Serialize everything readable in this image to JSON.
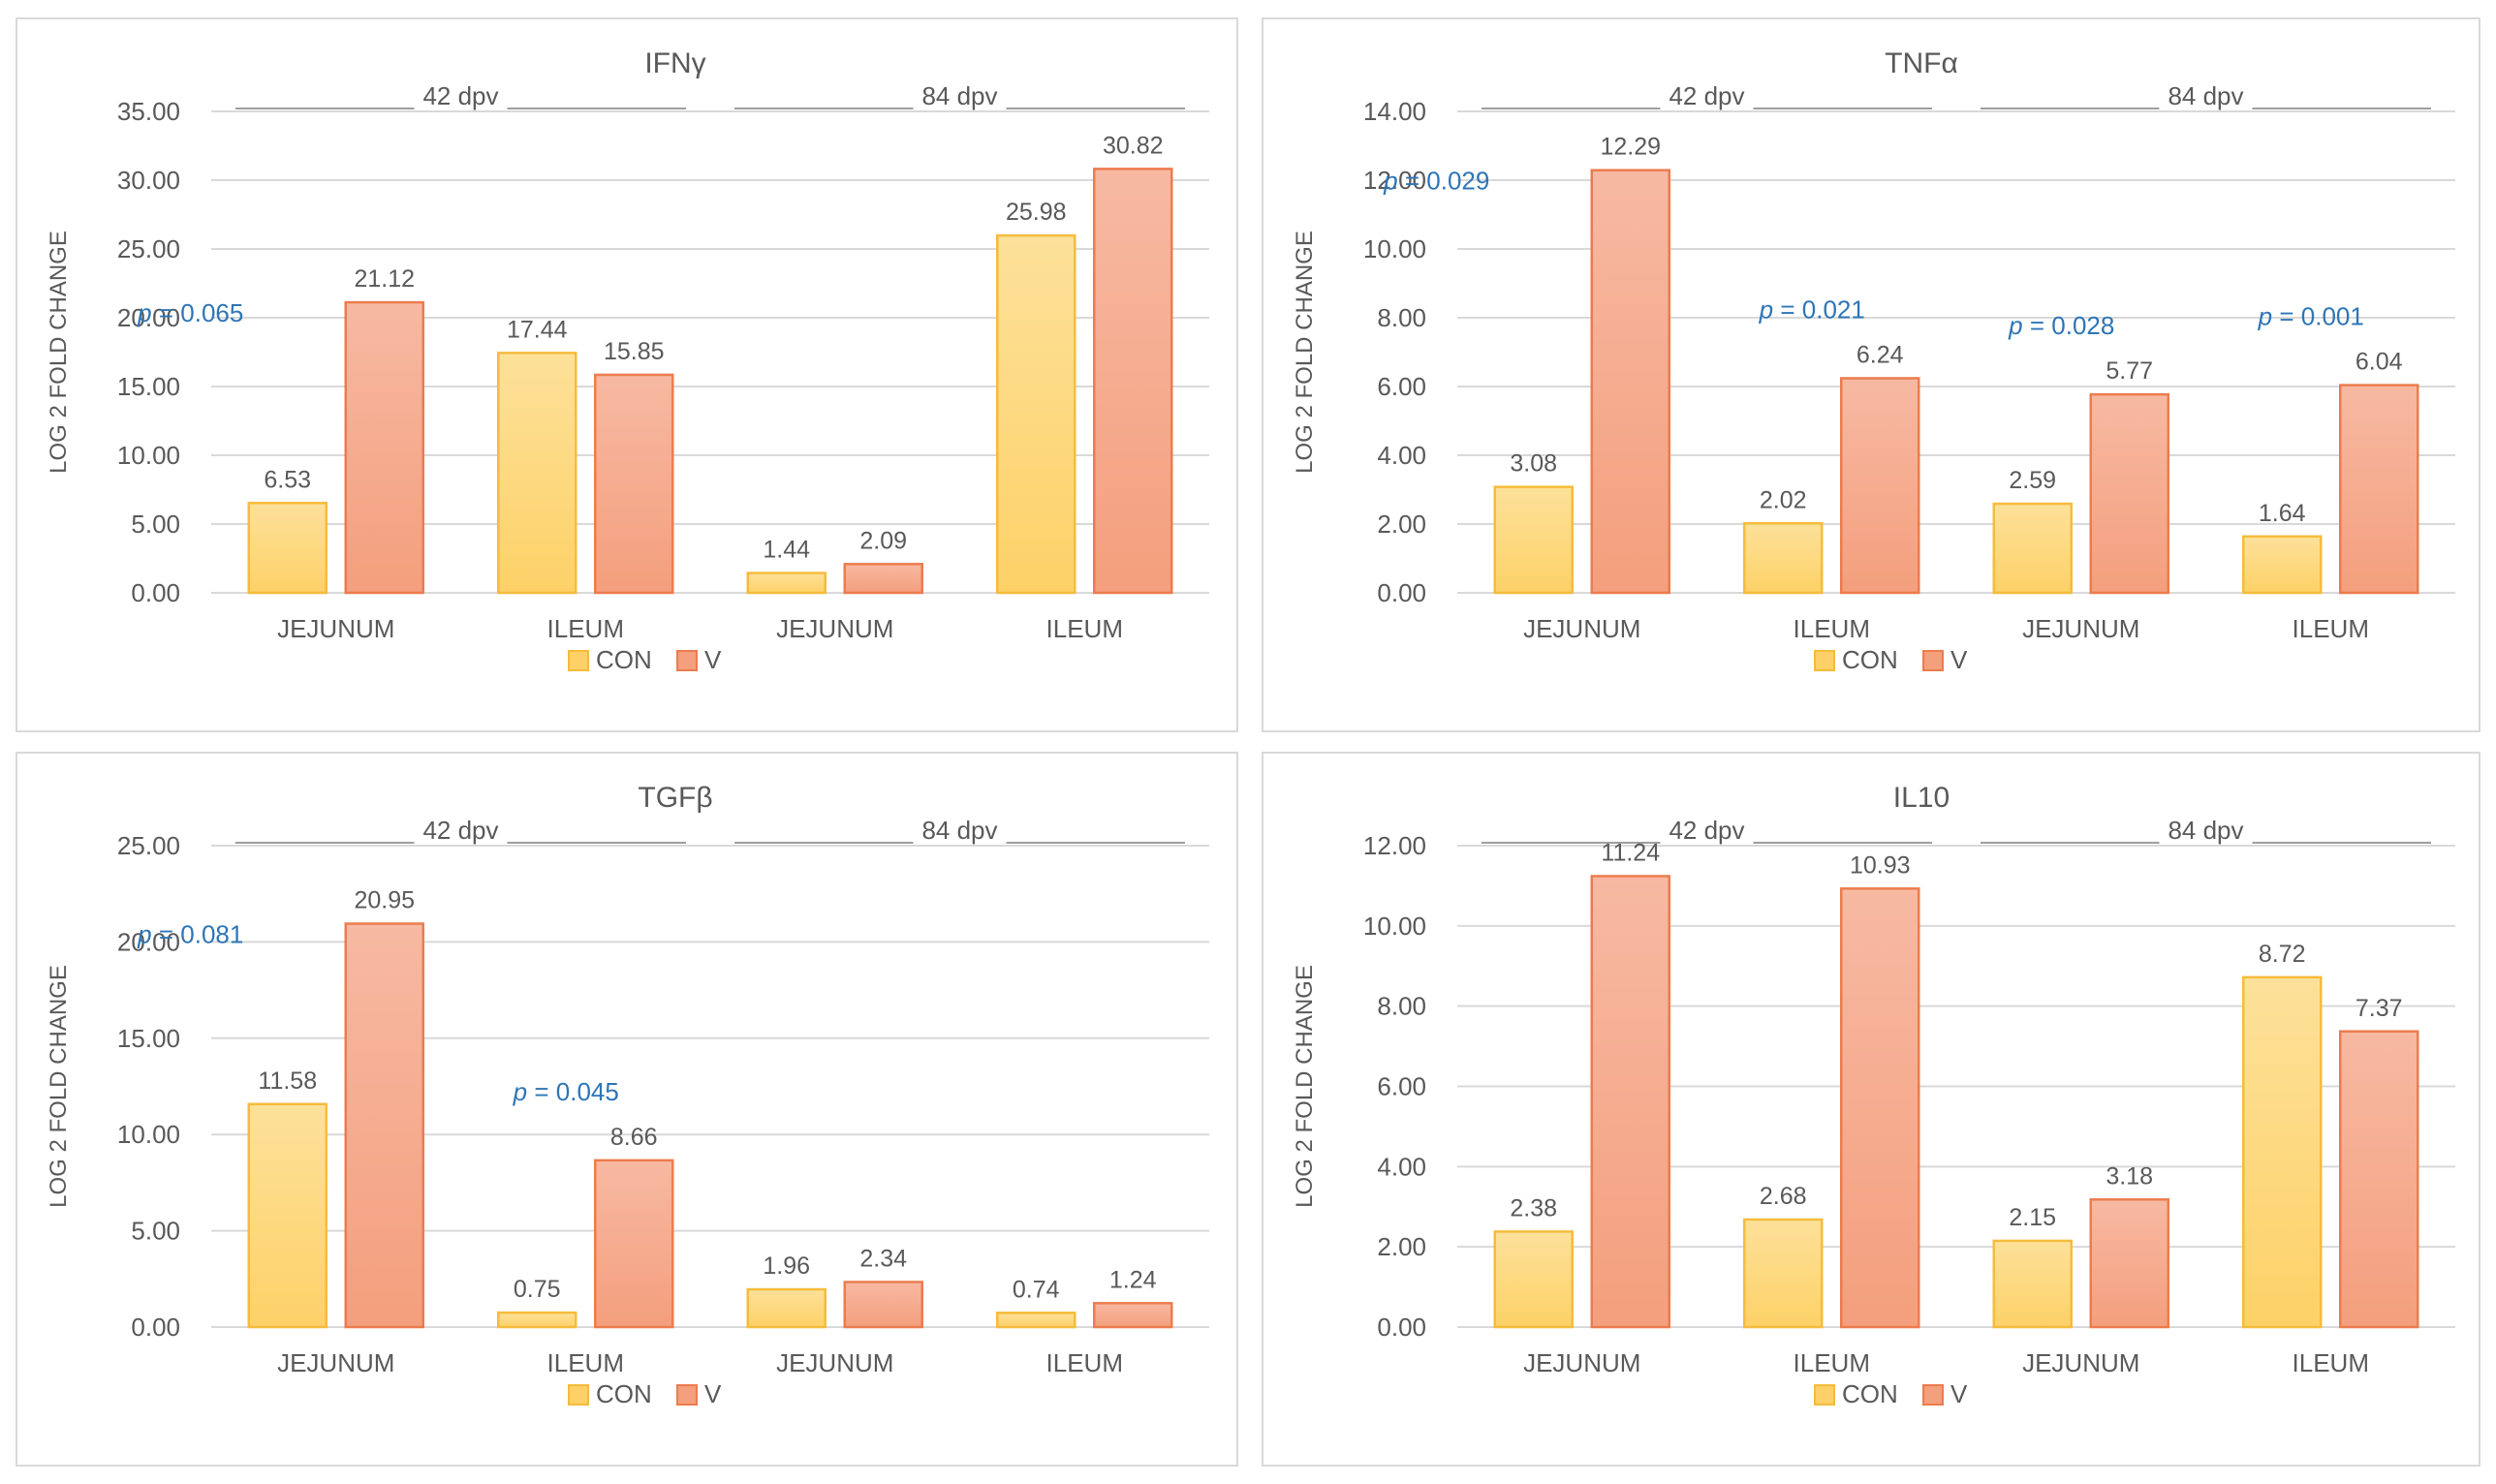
{
  "colors": {
    "con_top": "#fde19a",
    "con_bottom": "#fdd167",
    "con_stroke": "#f5bc3c",
    "v_top": "#f7b9a2",
    "v_bottom": "#f49f7d",
    "v_stroke": "#ec7c4e",
    "grid": "#d9d9d9",
    "text": "#595959",
    "pvalue": "#2e75b6"
  },
  "chart_data": [
    {
      "type": "bar",
      "title": "IFNγ",
      "ylabel": "LOG 2 FOLD CHANGE",
      "ylim": [
        0,
        35
      ],
      "yticks": [
        "0.00",
        "5.00",
        "10.00",
        "15.00",
        "20.00",
        "25.00",
        "30.00",
        "35.00"
      ],
      "categories": [
        "JEJUNUM",
        "ILEUM",
        "JEJUNUM",
        "ILEUM"
      ],
      "groups": [
        "42 dpv",
        "84 dpv"
      ],
      "legend": [
        "CON",
        "V"
      ],
      "series": [
        {
          "name": "CON",
          "values": [
            6.53,
            17.44,
            1.44,
            25.98
          ],
          "labels": [
            "6.53",
            "17.44",
            "1.44",
            "25.98"
          ]
        },
        {
          "name": "V",
          "values": [
            21.12,
            15.85,
            2.09,
            30.82
          ],
          "labels": [
            "21.12",
            "15.85",
            "2.09",
            "30.82"
          ]
        }
      ],
      "annotations": [
        {
          "p": "p",
          "text": " = 0.065",
          "category": 0
        }
      ]
    },
    {
      "type": "bar",
      "title": "TNFα",
      "ylabel": "LOG 2 FOLD CHANGE",
      "ylim": [
        0,
        14
      ],
      "yticks": [
        "0.00",
        "2.00",
        "4.00",
        "6.00",
        "8.00",
        "10.00",
        "12.00",
        "14.00"
      ],
      "categories": [
        "JEJUNUM",
        "ILEUM",
        "JEJUNUM",
        "ILEUM"
      ],
      "groups": [
        "42 dpv",
        "84 dpv"
      ],
      "legend": [
        "CON",
        "V"
      ],
      "series": [
        {
          "name": "CON",
          "values": [
            3.08,
            2.02,
            2.59,
            1.64
          ],
          "labels": [
            "3.08",
            "2.02",
            "2.59",
            "1.64"
          ]
        },
        {
          "name": "V",
          "values": [
            12.29,
            6.24,
            5.77,
            6.04
          ],
          "labels": [
            "12.29",
            "6.24",
            "5.77",
            "6.04"
          ]
        }
      ],
      "annotations": [
        {
          "p": "p",
          "text": " = 0.029",
          "category": 0
        },
        {
          "p": "p",
          "text": " = 0.021",
          "category": 1
        },
        {
          "p": "p",
          "text": " = 0.028",
          "category": 2
        },
        {
          "p": "p",
          "text": " = 0.001",
          "category": 3
        }
      ]
    },
    {
      "type": "bar",
      "title": "TGFβ",
      "ylabel": "LOG 2 FOLD CHANGE",
      "ylim": [
        0,
        25
      ],
      "yticks": [
        "0.00",
        "5.00",
        "10.00",
        "15.00",
        "20.00",
        "25.00"
      ],
      "categories": [
        "JEJUNUM",
        "ILEUM",
        "JEJUNUM",
        "ILEUM"
      ],
      "groups": [
        "42 dpv",
        "84 dpv"
      ],
      "legend": [
        "CON",
        "V"
      ],
      "series": [
        {
          "name": "CON",
          "values": [
            11.58,
            0.75,
            1.96,
            0.74
          ],
          "labels": [
            "11.58",
            "0.75",
            "1.96",
            "0.74"
          ]
        },
        {
          "name": "V",
          "values": [
            20.95,
            8.66,
            2.34,
            1.24
          ],
          "labels": [
            "20.95",
            "8.66",
            "2.34",
            "1.24"
          ]
        }
      ],
      "annotations": [
        {
          "p": "p",
          "text": " = 0.081",
          "category": 0
        },
        {
          "p": "p",
          "text": " = 0.045",
          "category": 1
        }
      ]
    },
    {
      "type": "bar",
      "title": "IL10",
      "ylabel": "LOG 2 FOLD CHANGE",
      "ylim": [
        0,
        12
      ],
      "yticks": [
        "0.00",
        "2.00",
        "4.00",
        "6.00",
        "8.00",
        "10.00",
        "12.00"
      ],
      "categories": [
        "JEJUNUM",
        "ILEUM",
        "JEJUNUM",
        "ILEUM"
      ],
      "groups": [
        "42 dpv",
        "84 dpv"
      ],
      "legend": [
        "CON",
        "V"
      ],
      "series": [
        {
          "name": "CON",
          "values": [
            2.38,
            2.68,
            2.15,
            8.72
          ],
          "labels": [
            "2.38",
            "2.68",
            "2.15",
            "8.72"
          ]
        },
        {
          "name": "V",
          "values": [
            11.24,
            10.93,
            3.18,
            7.37
          ],
          "labels": [
            "11.24",
            "10.93",
            "3.18",
            "7.37"
          ]
        }
      ],
      "annotations": []
    }
  ]
}
